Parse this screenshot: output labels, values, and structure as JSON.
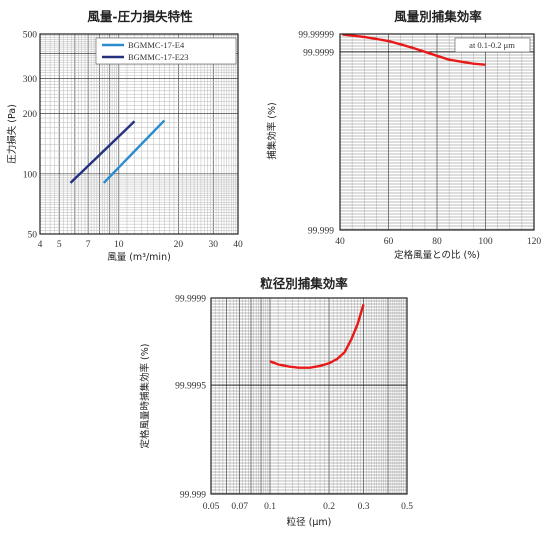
{
  "colors": {
    "series_light_blue": "#2a8ccf",
    "series_dark_blue": "#23317f",
    "series_red": "#e81919",
    "grid_major": "#444444",
    "grid_minor": "#b8b8b8"
  },
  "chart_data": [
    {
      "type": "line",
      "title": "風量-圧力損失特性",
      "xlabel": "風量 (m³/min)",
      "ylabel": "圧力損失 (Pa)",
      "xscale": "log",
      "yscale": "log",
      "xlim": [
        4,
        40
      ],
      "ylim": [
        50,
        500
      ],
      "xticks": [
        "4",
        "5",
        "7",
        "10",
        "20",
        "30",
        "40"
      ],
      "yticks": [
        "500",
        "300",
        "200",
        "100",
        "50"
      ],
      "grid": true,
      "legend_position": "top-right",
      "series": [
        {
          "name": "BGMMC-17-E4",
          "color": "#2a8ccf",
          "x": [
            8.4,
            17.0
          ],
          "y": [
            90,
            185
          ]
        },
        {
          "name": "BGMMC-17-E23",
          "color": "#23317f",
          "x": [
            5.7,
            12.0
          ],
          "y": [
            90,
            183
          ]
        }
      ]
    },
    {
      "type": "line",
      "title": "風量別捕集効率",
      "xlabel": "定格風量との比 (%)",
      "ylabel": "捕集効率 (%)",
      "xlim": [
        40,
        120
      ],
      "ylim": [
        99.999,
        99.99999
      ],
      "xticks": [
        "40",
        "60",
        "80",
        "100",
        "120"
      ],
      "yticks": [
        "99.99999",
        "99.9999",
        "99.999"
      ],
      "annotation": "at 0.1-0.2 μm",
      "grid": true,
      "series": [
        {
          "color": "#e81919",
          "x": [
            41,
            45,
            50,
            55,
            60,
            65,
            70,
            75,
            80,
            85,
            90,
            95,
            100
          ],
          "y": [
            99.999988,
            99.999982,
            99.999975,
            99.999965,
            99.999954,
            99.999938,
            99.99992,
            99.9999,
            99.99988,
            99.99986,
            99.99985,
            99.99984,
            99.999835
          ]
        }
      ]
    },
    {
      "type": "line",
      "title": "粒径別捕集効率",
      "xlabel": "粒径 (μm)",
      "ylabel": "定格風量時捕集効率 (%)",
      "xscale": "log",
      "xlim": [
        0.05,
        0.5
      ],
      "ylim": [
        99.999,
        99.9999
      ],
      "xticks": [
        "0.05",
        "0.07",
        "0.1",
        "0.2",
        "0.3",
        "0.5"
      ],
      "yticks": [
        "99.9999",
        "99.9995",
        "99.999"
      ],
      "grid": true,
      "series": [
        {
          "color": "#e81919",
          "x": [
            0.1,
            0.11,
            0.125,
            0.14,
            0.16,
            0.18,
            0.2,
            0.22,
            0.24,
            0.26,
            0.28,
            0.3
          ],
          "y": [
            99.99961,
            99.999595,
            99.999585,
            99.99958,
            99.99958,
            99.999588,
            99.9996,
            99.99962,
            99.99965,
            99.99971,
            99.99978,
            99.99987
          ]
        }
      ]
    }
  ]
}
